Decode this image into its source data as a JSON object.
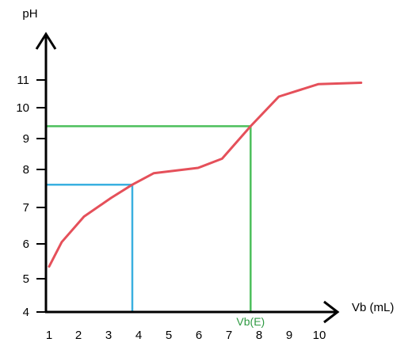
{
  "chart_data": {
    "type": "line",
    "ylabel": "pH",
    "xlabel": "Vb (mL)",
    "x_ticks": [
      "1",
      "2",
      "3",
      "4",
      "5",
      "6",
      "7",
      "8",
      "9",
      "10"
    ],
    "y_ticks": [
      "4",
      "5",
      "6",
      "7",
      "8",
      "9",
      "10",
      "11"
    ],
    "xlim": [
      1,
      11
    ],
    "ylim": [
      4,
      12
    ],
    "series": [
      {
        "x": [
          1.0,
          1.42,
          2.16,
          3.06,
          3.77,
          4.48,
          5.96,
          6.76,
          7.71,
          8.65,
          9.96,
          11.39
        ],
        "y": [
          5.35,
          6.05,
          6.75,
          7.25,
          7.6,
          7.9,
          8.05,
          8.35,
          9.4,
          10.4,
          10.85,
          10.9
        ]
      }
    ],
    "annotations": [
      {
        "label": "",
        "x": 3.77,
        "y": 7.6
      },
      {
        "label": "Vb(E)",
        "x": 7.71,
        "y": 9.4
      }
    ],
    "colors": {
      "curve": "#e5505a",
      "half_equivalence_lines": "#3ab0e0",
      "equivalence_lines": "#4cbf5c",
      "axes": "#000000",
      "annotation_text": "#2e9a42"
    },
    "grid": false
  }
}
